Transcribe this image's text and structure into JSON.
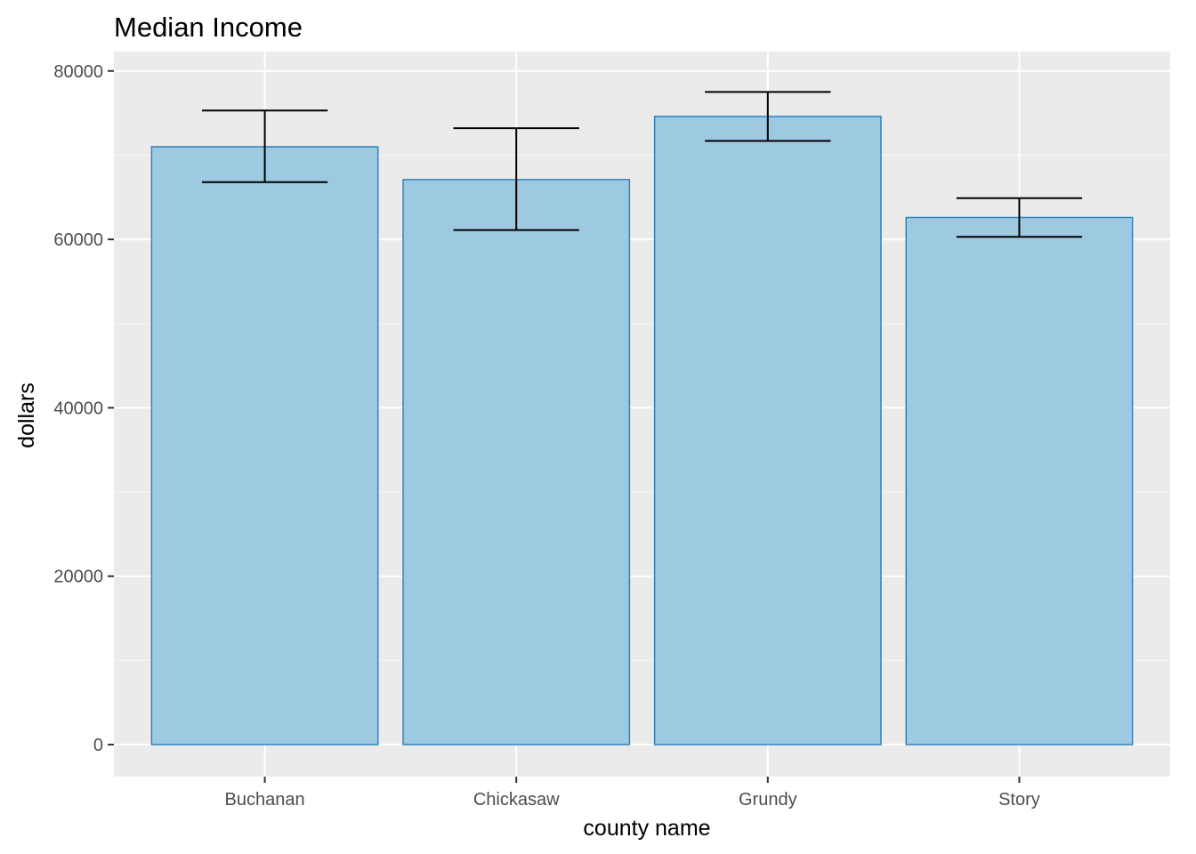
{
  "chart_data": {
    "type": "bar",
    "title": "Median Income",
    "xlabel": "county name",
    "ylabel": "dollars",
    "categories": [
      "Buchanan",
      "Chickasaw",
      "Grundy",
      "Story"
    ],
    "values": [
      71000,
      67100,
      74600,
      62600
    ],
    "error_low": [
      66800,
      61100,
      71700,
      60300
    ],
    "error_high": [
      75300,
      73200,
      77500,
      64900
    ],
    "ylim": [
      -3800,
      82300
    ],
    "yticks": [
      0,
      20000,
      40000,
      60000,
      80000
    ],
    "ytick_labels": [
      "0",
      "20000",
      "40000",
      "60000",
      "80000"
    ],
    "grid": true,
    "legend": "none",
    "colors": {
      "bar_fill": "#9ecae1",
      "bar_stroke": "#3182bd",
      "errorbar": "#000000",
      "panel_bg": "#ebebeb",
      "grid_major": "#ffffff",
      "grid_minor": "#f7f7f7",
      "tick": "#333333"
    }
  }
}
